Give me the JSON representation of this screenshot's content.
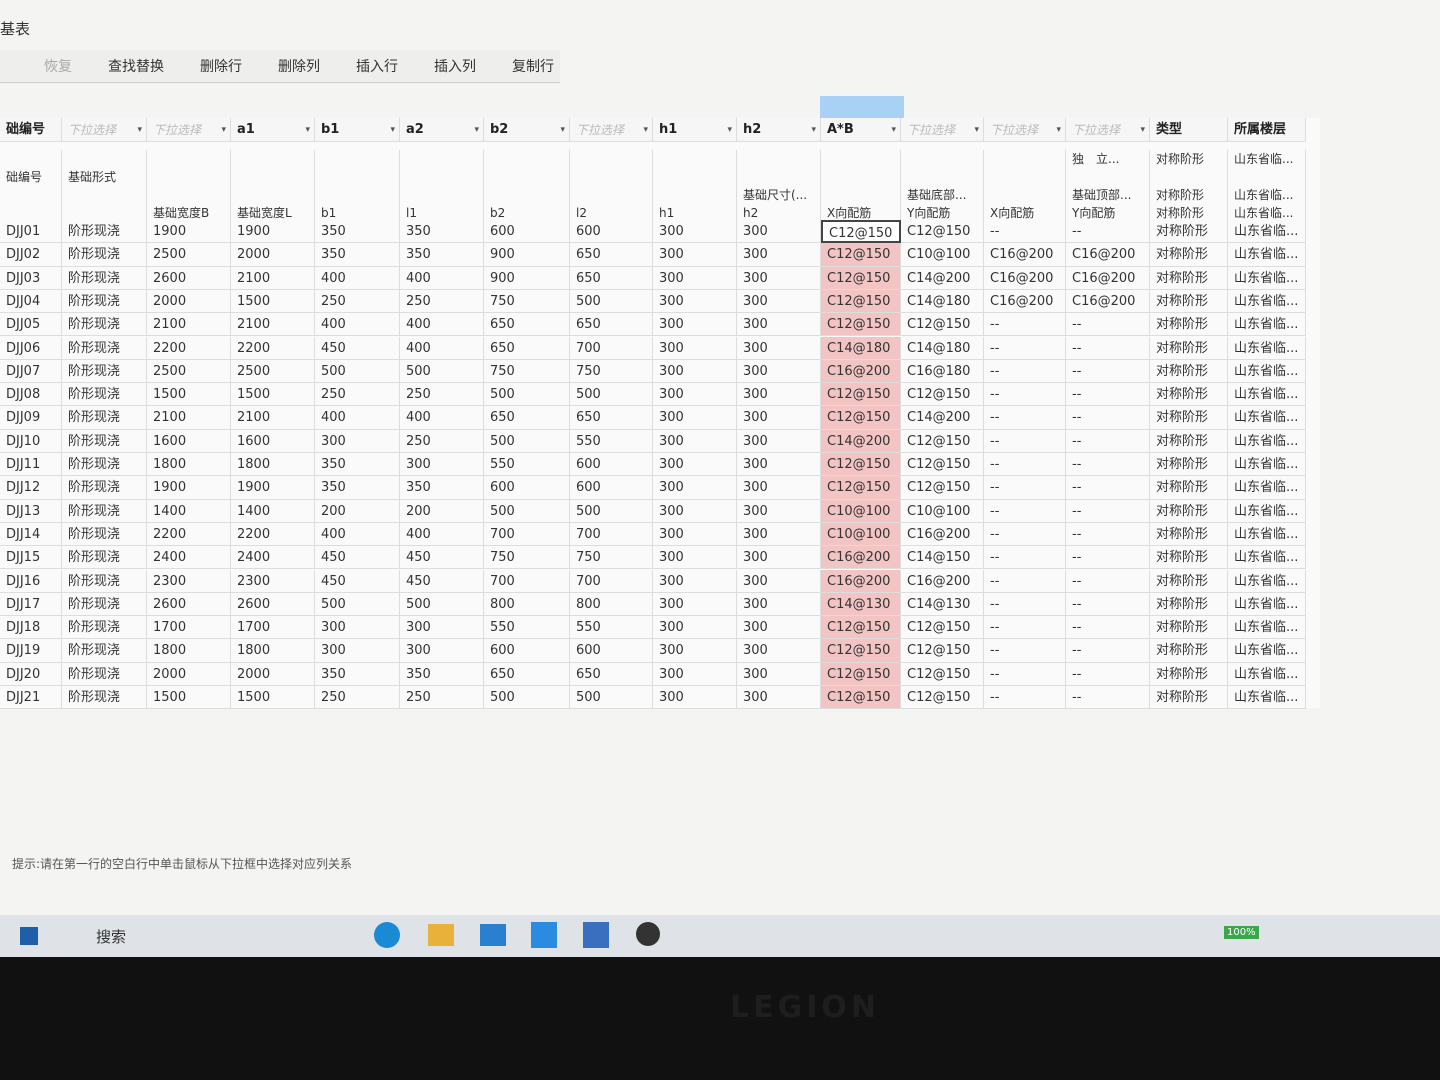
{
  "window": {
    "title": "基表"
  },
  "toolbar": [
    "恢复",
    "查找替换",
    "删除行",
    "删除列",
    "插入行",
    "插入列",
    "复制行"
  ],
  "table": {
    "mapping_row": [
      "础编号",
      "下拉选择",
      "下拉选择",
      "a1",
      "b1",
      "a2",
      "b2",
      "下拉选择",
      "h1",
      "h2",
      "A*B",
      "下拉选择",
      "下拉选择",
      "下拉选择",
      "类型",
      "所属楼层"
    ],
    "header_rows": [
      [
        null,
        null,
        null,
        null,
        null,
        null,
        null,
        null,
        null,
        null,
        null,
        null,
        null,
        "独　立...",
        "对称阶形",
        "山东省临..."
      ],
      [
        "础编号",
        "基础形式",
        null,
        null,
        null,
        null,
        null,
        null,
        null,
        null,
        null,
        null,
        null,
        null,
        null,
        null
      ],
      [
        null,
        null,
        null,
        null,
        null,
        null,
        null,
        null,
        null,
        "基础尺寸(...",
        null,
        "基础底部...",
        null,
        "基础顶部...",
        "对称阶形",
        "山东省临..."
      ],
      [
        null,
        null,
        "基础宽度B",
        "基础宽度L",
        "b1",
        "l1",
        "b2",
        "l2",
        "h1",
        "h2",
        "X向配筋",
        "Y向配筋",
        "X向配筋",
        "Y向配筋",
        "对称阶形",
        "山东省临..."
      ]
    ],
    "rows": [
      [
        "DJJ01",
        "阶形现浇",
        1900,
        1900,
        350,
        350,
        600,
        600,
        300,
        300,
        "C12@150",
        "C12@150",
        "--",
        "--",
        "对称阶形",
        "山东省临..."
      ],
      [
        "DJJ02",
        "阶形现浇",
        2500,
        2000,
        350,
        350,
        900,
        650,
        300,
        300,
        "C12@150",
        "C10@100",
        "C16@200",
        "C16@200",
        "对称阶形",
        "山东省临..."
      ],
      [
        "DJJ03",
        "阶形现浇",
        2600,
        2100,
        400,
        400,
        900,
        650,
        300,
        300,
        "C12@150",
        "C14@200",
        "C16@200",
        "C16@200",
        "对称阶形",
        "山东省临..."
      ],
      [
        "DJJ04",
        "阶形现浇",
        2000,
        1500,
        250,
        250,
        750,
        500,
        300,
        300,
        "C12@150",
        "C14@180",
        "C16@200",
        "C16@200",
        "对称阶形",
        "山东省临..."
      ],
      [
        "DJJ05",
        "阶形现浇",
        2100,
        2100,
        400,
        400,
        650,
        650,
        300,
        300,
        "C12@150",
        "C12@150",
        "--",
        "--",
        "对称阶形",
        "山东省临..."
      ],
      [
        "DJJ06",
        "阶形现浇",
        2200,
        2200,
        450,
        400,
        650,
        700,
        300,
        300,
        "C14@180",
        "C14@180",
        "--",
        "--",
        "对称阶形",
        "山东省临..."
      ],
      [
        "DJJ07",
        "阶形现浇",
        2500,
        2500,
        500,
        500,
        750,
        750,
        300,
        300,
        "C16@200",
        "C16@180",
        "--",
        "--",
        "对称阶形",
        "山东省临..."
      ],
      [
        "DJJ08",
        "阶形现浇",
        1500,
        1500,
        250,
        250,
        500,
        500,
        300,
        300,
        "C12@150",
        "C12@150",
        "--",
        "--",
        "对称阶形",
        "山东省临..."
      ],
      [
        "DJJ09",
        "阶形现浇",
        2100,
        2100,
        400,
        400,
        650,
        650,
        300,
        300,
        "C12@150",
        "C14@200",
        "--",
        "--",
        "对称阶形",
        "山东省临..."
      ],
      [
        "DJJ10",
        "阶形现浇",
        1600,
        1600,
        300,
        250,
        500,
        550,
        300,
        300,
        "C14@200",
        "C12@150",
        "--",
        "--",
        "对称阶形",
        "山东省临..."
      ],
      [
        "DJJ11",
        "阶形现浇",
        1800,
        1800,
        350,
        300,
        550,
        600,
        300,
        300,
        "C12@150",
        "C12@150",
        "--",
        "--",
        "对称阶形",
        "山东省临..."
      ],
      [
        "DJJ12",
        "阶形现浇",
        1900,
        1900,
        350,
        350,
        600,
        600,
        300,
        300,
        "C12@150",
        "C12@150",
        "--",
        "--",
        "对称阶形",
        "山东省临..."
      ],
      [
        "DJJ13",
        "阶形现浇",
        1400,
        1400,
        200,
        200,
        500,
        500,
        300,
        300,
        "C10@100",
        "C10@100",
        "--",
        "--",
        "对称阶形",
        "山东省临..."
      ],
      [
        "DJJ14",
        "阶形现浇",
        2200,
        2200,
        400,
        400,
        700,
        700,
        300,
        300,
        "C10@100",
        "C16@200",
        "--",
        "--",
        "对称阶形",
        "山东省临..."
      ],
      [
        "DJJ15",
        "阶形现浇",
        2400,
        2400,
        450,
        450,
        750,
        750,
        300,
        300,
        "C16@200",
        "C14@150",
        "--",
        "--",
        "对称阶形",
        "山东省临..."
      ],
      [
        "DJJ16",
        "阶形现浇",
        2300,
        2300,
        450,
        450,
        700,
        700,
        300,
        300,
        "C16@200",
        "C16@200",
        "--",
        "--",
        "对称阶形",
        "山东省临..."
      ],
      [
        "DJJ17",
        "阶形现浇",
        2600,
        2600,
        500,
        500,
        800,
        800,
        300,
        300,
        "C14@130",
        "C14@130",
        "--",
        "--",
        "对称阶形",
        "山东省临..."
      ],
      [
        "DJJ18",
        "阶形现浇",
        1700,
        1700,
        300,
        300,
        550,
        550,
        300,
        300,
        "C12@150",
        "C12@150",
        "--",
        "--",
        "对称阶形",
        "山东省临..."
      ],
      [
        "DJJ19",
        "阶形现浇",
        1800,
        1800,
        300,
        300,
        600,
        600,
        300,
        300,
        "C12@150",
        "C12@150",
        "--",
        "--",
        "对称阶形",
        "山东省临..."
      ],
      [
        "DJJ20",
        "阶形现浇",
        2000,
        2000,
        350,
        350,
        650,
        650,
        300,
        300,
        "C12@150",
        "C12@150",
        "--",
        "--",
        "对称阶形",
        "山东省临..."
      ],
      [
        "DJJ21",
        "阶形现浇",
        1500,
        1500,
        250,
        250,
        500,
        500,
        300,
        300,
        "C12@150",
        "C12@150",
        "--",
        "--",
        "对称阶形",
        "山东省临..."
      ]
    ]
  },
  "hint": "提示:请在第一行的空白行中单击鼠标从下拉框中选择对应列关系",
  "taskbar": {
    "search": "搜索",
    "battery": "100%"
  },
  "bezel": {
    "brand": "LEGION"
  }
}
